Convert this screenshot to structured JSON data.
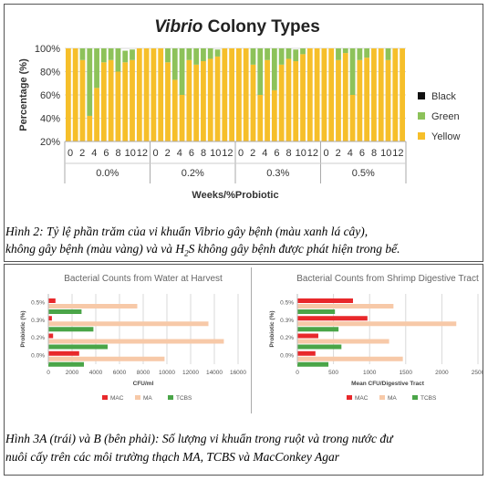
{
  "figure2": {
    "caption_line1": "Hình 2: Tỷ lệ phần trăm của vi khuẩn Vibrio gây bệnh (màu xanh lá cây),",
    "caption_line2_a": "không gây bệnh (màu vàng) và và H",
    "caption_line2_sub": "2",
    "caption_line2_b": "S không gây bệnh được phát hiện trong bể."
  },
  "figure3": {
    "caption_line1": "Hình 3A (trái) và B (bên phải): Số lượng vi khuẩn trong ruột và trong nước đư",
    "caption_line2": "nuôi cấy trên các môi trường thạch MA, TCBS và MacConkey Agar"
  },
  "colors": {
    "black": "#111111",
    "green": "#8dc25a",
    "yellow": "#f6bf2a",
    "mac": "#e8282b",
    "ma": "#f7c9a8",
    "tcbs": "#4aa548",
    "grid": "#d9d9d9"
  },
  "chart_data": [
    {
      "type": "bar",
      "stacked": true,
      "title_italic": "Vibrio",
      "title_rest": " Colony Types",
      "ylabel": "Percentage (%)",
      "xlabel": "Weeks/%Probiotic",
      "ylim": [
        20,
        100
      ],
      "yticks": [
        "20%",
        "40%",
        "60%",
        "80%",
        "100%"
      ],
      "groups": [
        "0.0%",
        "0.2%",
        "0.3%",
        "0.5%"
      ],
      "week_labels": [
        "0",
        "2",
        "4",
        "6",
        "8",
        "10",
        "12"
      ],
      "bars_per_group": 12,
      "legend": [
        "Black",
        "Green",
        "Yellow"
      ],
      "legend_position": "right",
      "series": [
        {
          "name": "Black",
          "values": [
            [
              0,
              0,
              0,
              0,
              0,
              0,
              0,
              0,
              0,
              0,
              0,
              0
            ],
            [
              0,
              0,
              0,
              0,
              0,
              0,
              0,
              0,
              0,
              0,
              0,
              0
            ],
            [
              0,
              0,
              0,
              0,
              0,
              0,
              0,
              0,
              0,
              0,
              0,
              0
            ],
            [
              0,
              0,
              0,
              0,
              0,
              0,
              0,
              0,
              0,
              0,
              0,
              0
            ]
          ]
        },
        {
          "name": "Green",
          "values": [
            [
              0,
              0,
              10,
              58,
              34,
              12,
              10,
              20,
              10,
              9,
              0,
              0
            ],
            [
              0,
              0,
              12,
              27,
              40,
              10,
              14,
              11,
              9,
              6,
              0,
              0
            ],
            [
              0,
              0,
              14,
              40,
              10,
              36,
              14,
              9,
              10,
              5,
              0,
              0
            ],
            [
              0,
              0,
              10,
              4,
              40,
              10,
              8,
              0,
              0,
              10,
              0,
              0
            ]
          ]
        },
        {
          "name": "Yellow",
          "values": [
            [
              100,
              100,
              90,
              42,
              66,
              88,
              90,
              80,
              88,
              90,
              100,
              100
            ],
            [
              100,
              100,
              88,
              73,
              60,
              90,
              86,
              89,
              91,
              93,
              100,
              100
            ],
            [
              100,
              100,
              86,
              60,
              90,
              64,
              86,
              91,
              89,
              95,
              100,
              100
            ],
            [
              100,
              100,
              90,
              96,
              60,
              90,
              92,
              100,
              100,
              90,
              100,
              100
            ]
          ]
        }
      ]
    },
    {
      "type": "bar",
      "orientation": "horizontal",
      "title": "Bacterial Counts from Water at Harvest",
      "ylabel": "Probiotic (%)",
      "xlabel": "CFU/ml",
      "xlim": [
        0,
        16000
      ],
      "xticks": [
        "0",
        "2000",
        "4000",
        "6000",
        "8000",
        "10000",
        "12000",
        "14000",
        "16000"
      ],
      "categories": [
        "0.5%",
        "0.3%",
        "0.2%",
        "0.0%"
      ],
      "series": [
        {
          "name": "MAC",
          "values": [
            600,
            300,
            400,
            2600
          ]
        },
        {
          "name": "MA",
          "values": [
            7500,
            13500,
            14800,
            9800
          ]
        },
        {
          "name": "TCBS",
          "values": [
            2800,
            3800,
            5000,
            3000
          ]
        }
      ]
    },
    {
      "type": "bar",
      "orientation": "horizontal",
      "title": "Bacterial Counts from Shrimp Digestive Tract",
      "ylabel": "Probiotic (%)",
      "xlabel": "Mean CFU/Digestive Tract",
      "xlim": [
        0,
        2500
      ],
      "xticks": [
        "0",
        "500",
        "1000",
        "1500",
        "2000",
        "2500"
      ],
      "categories": [
        "0.5%",
        "0.3%",
        "0.2%",
        "0.0%"
      ],
      "series": [
        {
          "name": "MAC",
          "values": [
            770,
            970,
            290,
            250
          ]
        },
        {
          "name": "MA",
          "values": [
            1330,
            2200,
            1270,
            1460
          ]
        },
        {
          "name": "TCBS",
          "values": [
            520,
            570,
            610,
            430
          ]
        }
      ]
    }
  ]
}
